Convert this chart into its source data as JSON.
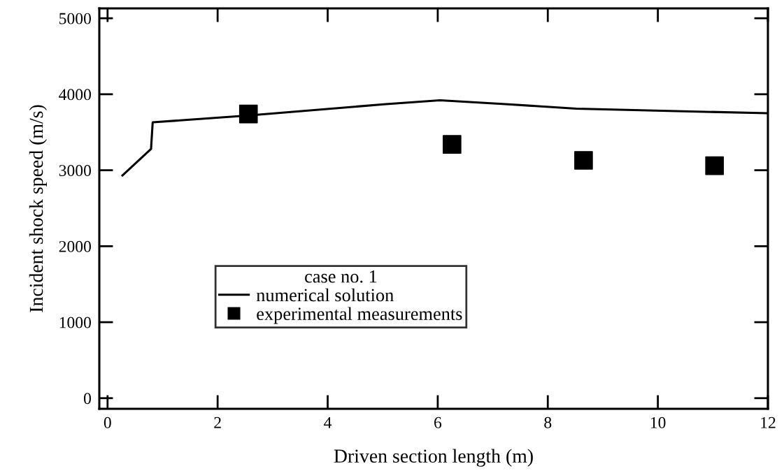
{
  "chart_data": {
    "type": "line",
    "xlabel": "Driven section length (m)",
    "ylabel": "Incident shock speed (m/s)",
    "legend_title": "case no. 1",
    "xlim": [
      -0.15,
      12
    ],
    "ylim": [
      -140,
      5130
    ],
    "xticks": [
      0,
      2,
      4,
      6,
      8,
      10,
      12
    ],
    "yticks": [
      0,
      1000,
      2000,
      3000,
      4000,
      5000
    ],
    "grid": false,
    "legend": "lower left",
    "series": [
      {
        "name": "numerical solution",
        "color": "#000000",
        "marker": "none",
        "line_style": "solid",
        "x": [
          0.27,
          0.79,
          0.82,
          2.56,
          5.06,
          6.04,
          7.23,
          8.52,
          11.98
        ],
        "values": [
          2930,
          3280,
          3630,
          3720,
          3870,
          3920,
          3870,
          3810,
          3750
        ]
      },
      {
        "name": "experimental measurements",
        "type": "scatter",
        "color": "#000000",
        "marker": "square",
        "x": [
          2.56,
          6.26,
          8.65,
          11.03
        ],
        "values": [
          3740,
          3340,
          3130,
          3060
        ]
      }
    ]
  }
}
